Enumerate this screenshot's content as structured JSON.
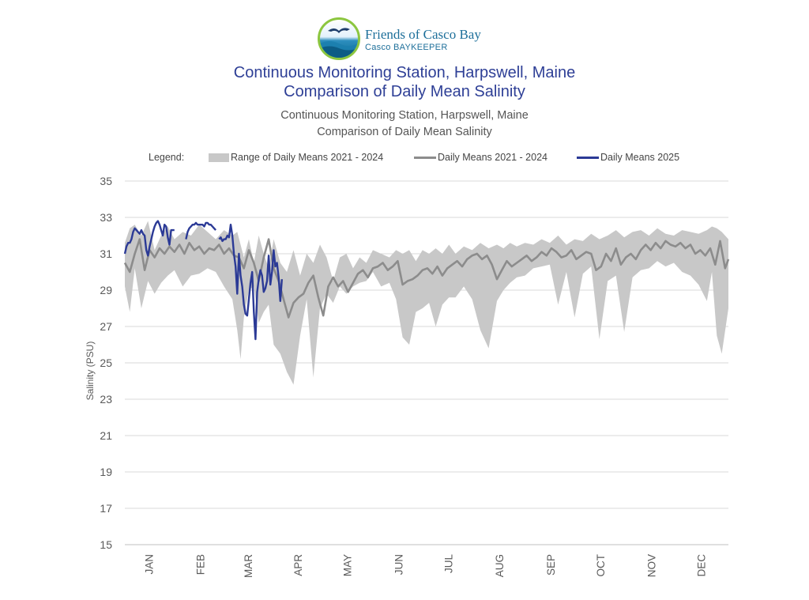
{
  "logo": {
    "name": "Friends of Casco Bay",
    "subtitle": "Casco BAYKEEPER"
  },
  "header": {
    "title_line1": "Continuous Monitoring Station, Harpswell, Maine",
    "title_line2": "Comparison of Daily Mean Salinity",
    "subtitle_line1": "Continuous Monitoring Station, Harpswell, Maine",
    "subtitle_line2": "Comparison of Daily Mean Salinity"
  },
  "legend": {
    "label": "Legend:",
    "items": [
      "Range of Daily Means 2021 - 2024",
      "Daily Means 2021 - 2024",
      "Daily Means 2025"
    ]
  },
  "colors": {
    "range": "#c8c8c8",
    "mean": "#8c8c8c",
    "y2025": "#2b3a96",
    "title": "#2e3f96"
  },
  "chart_data": {
    "type": "line",
    "ylabel": "Salinity (PSU)",
    "xlabel": "",
    "ylim": [
      15,
      35
    ],
    "yticks": [
      15,
      17,
      19,
      21,
      23,
      25,
      27,
      29,
      31,
      33,
      35
    ],
    "xlim": [
      0,
      365
    ],
    "months": [
      "JAN",
      "FEB",
      "MAR",
      "APR",
      "MAY",
      "JUN",
      "JUL",
      "AUG",
      "SEP",
      "OCT",
      "NOV",
      "DEC"
    ],
    "month_positions": [
      15,
      46,
      75,
      105,
      135,
      166,
      196,
      227,
      258,
      288,
      319,
      349
    ],
    "grid": true,
    "legend_position": "top",
    "series": [
      {
        "name": "Range of Daily Means 2021 - 2024",
        "type": "area",
        "x": [
          0,
          3,
          6,
          10,
          14,
          18,
          22,
          26,
          30,
          35,
          40,
          45,
          50,
          55,
          60,
          65,
          68,
          70,
          72,
          75,
          78,
          81,
          84,
          87,
          90,
          94,
          98,
          102,
          106,
          110,
          114,
          118,
          122,
          126,
          130,
          134,
          138,
          142,
          146,
          150,
          155,
          160,
          164,
          168,
          172,
          176,
          180,
          184,
          188,
          192,
          196,
          200,
          205,
          210,
          215,
          220,
          225,
          229,
          233,
          237,
          242,
          247,
          252,
          257,
          262,
          267,
          272,
          277,
          282,
          287,
          292,
          297,
          302,
          307,
          312,
          317,
          322,
          327,
          332,
          337,
          342,
          347,
          352,
          355,
          358,
          361,
          365
        ],
        "upper": [
          31.6,
          32.4,
          32.6,
          32.0,
          32.8,
          31.2,
          32.0,
          32.5,
          31.8,
          32.2,
          32.0,
          32.6,
          32.2,
          31.8,
          32.3,
          32.0,
          32.2,
          31.5,
          30.8,
          31.8,
          30.5,
          32.0,
          31.0,
          30.2,
          31.8,
          30.5,
          30.0,
          31.2,
          29.8,
          31.0,
          30.5,
          31.5,
          30.8,
          29.5,
          30.8,
          31.0,
          30.2,
          30.8,
          30.5,
          31.2,
          31.0,
          30.8,
          31.2,
          31.0,
          31.2,
          30.6,
          31.2,
          31.0,
          31.3,
          31.0,
          31.5,
          31.0,
          31.4,
          31.2,
          31.6,
          31.3,
          31.5,
          31.3,
          31.6,
          31.4,
          31.6,
          31.5,
          31.8,
          31.6,
          32.0,
          31.5,
          31.8,
          31.7,
          32.1,
          31.8,
          32.0,
          32.3,
          31.9,
          32.2,
          32.3,
          32.0,
          32.4,
          32.1,
          32.0,
          32.3,
          32.2,
          32.1,
          32.3,
          32.5,
          32.4,
          32.2,
          31.8
        ],
        "lower": [
          29.2,
          27.8,
          30.2,
          28.0,
          29.5,
          28.8,
          29.4,
          29.8,
          30.1,
          29.2,
          29.8,
          29.9,
          30.2,
          30.0,
          29.2,
          28.5,
          26.8,
          25.2,
          27.5,
          29.0,
          29.2,
          27.2,
          27.8,
          28.2,
          26.0,
          25.5,
          24.5,
          23.8,
          26.5,
          28.5,
          24.2,
          28.0,
          28.8,
          28.3,
          29.2,
          28.8,
          29.2,
          29.4,
          29.5,
          30.0,
          29.2,
          29.4,
          28.5,
          26.4,
          26.0,
          27.8,
          28.0,
          28.3,
          27.0,
          28.2,
          28.6,
          28.6,
          29.2,
          28.5,
          26.8,
          25.8,
          28.4,
          29.0,
          29.4,
          29.7,
          29.8,
          30.2,
          30.3,
          30.4,
          28.2,
          30.0,
          27.5,
          29.9,
          30.3,
          26.3,
          29.5,
          29.8,
          26.7,
          29.7,
          30.1,
          30.2,
          30.6,
          30.3,
          30.5,
          30.0,
          29.8,
          29.3,
          28.4,
          30.0,
          26.5,
          25.5,
          28.0
        ]
      },
      {
        "name": "Daily Means 2021 - 2024",
        "type": "line",
        "x": [
          0,
          3,
          6,
          9,
          12,
          15,
          18,
          21,
          24,
          27,
          30,
          33,
          36,
          39,
          42,
          45,
          48,
          51,
          54,
          57,
          60,
          63,
          66,
          69,
          72,
          75,
          78,
          81,
          84,
          87,
          90,
          93,
          96,
          99,
          102,
          105,
          108,
          111,
          114,
          117,
          120,
          123,
          126,
          129,
          132,
          135,
          138,
          141,
          144,
          147,
          150,
          153,
          156,
          159,
          162,
          165,
          168,
          171,
          174,
          177,
          180,
          183,
          186,
          189,
          192,
          195,
          198,
          201,
          204,
          207,
          210,
          213,
          216,
          219,
          222,
          225,
          228,
          231,
          234,
          237,
          240,
          243,
          246,
          249,
          252,
          255,
          258,
          261,
          264,
          267,
          270,
          273,
          276,
          279,
          282,
          285,
          288,
          291,
          294,
          297,
          300,
          303,
          306,
          309,
          312,
          315,
          318,
          321,
          324,
          327,
          330,
          333,
          336,
          339,
          342,
          345,
          348,
          351,
          354,
          357,
          360,
          363,
          365
        ],
        "values": [
          30.5,
          30.0,
          31.0,
          31.8,
          30.1,
          31.2,
          30.8,
          31.3,
          31.0,
          31.4,
          31.1,
          31.5,
          31.0,
          31.6,
          31.2,
          31.4,
          31.0,
          31.3,
          31.2,
          31.5,
          31.0,
          31.3,
          30.9,
          30.8,
          30.2,
          31.2,
          30.5,
          29.5,
          30.8,
          31.8,
          30.2,
          29.5,
          28.5,
          27.5,
          28.3,
          28.6,
          28.8,
          29.4,
          29.8,
          28.6,
          27.6,
          29.2,
          29.7,
          29.2,
          29.5,
          28.9,
          29.4,
          29.9,
          30.1,
          29.7,
          30.2,
          30.3,
          30.5,
          30.1,
          30.3,
          30.6,
          29.3,
          29.5,
          29.6,
          29.8,
          30.1,
          30.2,
          29.9,
          30.3,
          29.8,
          30.2,
          30.4,
          30.6,
          30.3,
          30.7,
          30.9,
          31.0,
          30.7,
          30.9,
          30.4,
          29.6,
          30.1,
          30.6,
          30.3,
          30.5,
          30.7,
          30.9,
          30.6,
          30.8,
          31.1,
          30.9,
          31.3,
          31.1,
          30.8,
          30.9,
          31.2,
          30.7,
          30.9,
          31.1,
          31.0,
          30.1,
          30.3,
          31.0,
          30.6,
          31.3,
          30.4,
          30.8,
          31.0,
          30.7,
          31.2,
          31.5,
          31.2,
          31.6,
          31.3,
          31.7,
          31.5,
          31.4,
          31.6,
          31.3,
          31.5,
          31.0,
          31.2,
          30.9,
          31.3,
          30.4,
          31.7,
          30.2,
          30.7
        ]
      },
      {
        "name": "Daily Means 2025",
        "type": "line",
        "segments": [
          {
            "x": [
              0,
              1,
              2,
              3,
              4,
              5,
              6,
              7,
              8,
              9,
              10,
              11,
              12,
              13,
              14,
              15,
              16,
              17,
              18,
              19,
              20,
              21,
              22,
              23,
              24,
              25,
              26,
              27,
              28,
              29,
              30
            ],
            "values": [
              31.0,
              31.4,
              31.6,
              31.6,
              31.8,
              32.2,
              32.4,
              32.3,
              32.2,
              32.1,
              32.3,
              32.1,
              32.0,
              31.2,
              30.9,
              31.4,
              31.8,
              32.2,
              32.5,
              32.7,
              32.8,
              32.6,
              32.3,
              32.0,
              32.6,
              32.5,
              31.9,
              31.5,
              32.3,
              32.3,
              32.3
            ]
          },
          {
            "x": [
              37,
              38,
              39,
              40,
              41,
              42,
              43,
              44,
              45,
              46,
              47,
              48,
              49,
              50,
              51,
              52,
              53,
              54,
              55
            ],
            "values": [
              31.8,
              32.2,
              32.4,
              32.5,
              32.6,
              32.6,
              32.7,
              32.6,
              32.6,
              32.6,
              32.6,
              32.5,
              32.7,
              32.7,
              32.6,
              32.6,
              32.5,
              32.4,
              32.3
            ]
          },
          {
            "x": [
              57,
              58,
              59,
              60,
              61,
              62,
              63,
              64,
              65,
              66,
              67,
              68,
              69,
              70,
              71,
              72,
              73,
              74,
              75,
              76,
              77,
              78,
              79,
              80,
              81,
              82,
              83,
              84,
              85,
              86,
              87,
              88,
              89,
              90,
              91,
              92,
              93,
              94,
              95
            ],
            "values": [
              31.8,
              31.9,
              31.7,
              31.8,
              31.8,
              32.0,
              31.9,
              32.6,
              32.0,
              31.0,
              30.3,
              28.8,
              31.0,
              29.8,
              29.2,
              28.2,
              27.7,
              27.6,
              28.5,
              29.4,
              30.0,
              27.8,
              26.3,
              28.9,
              29.6,
              30.1,
              29.8,
              28.9,
              29.1,
              29.5,
              30.9,
              29.3,
              30.0,
              31.2,
              30.3,
              30.5,
              29.7,
              28.4,
              29.6
            ]
          }
        ]
      }
    ]
  }
}
